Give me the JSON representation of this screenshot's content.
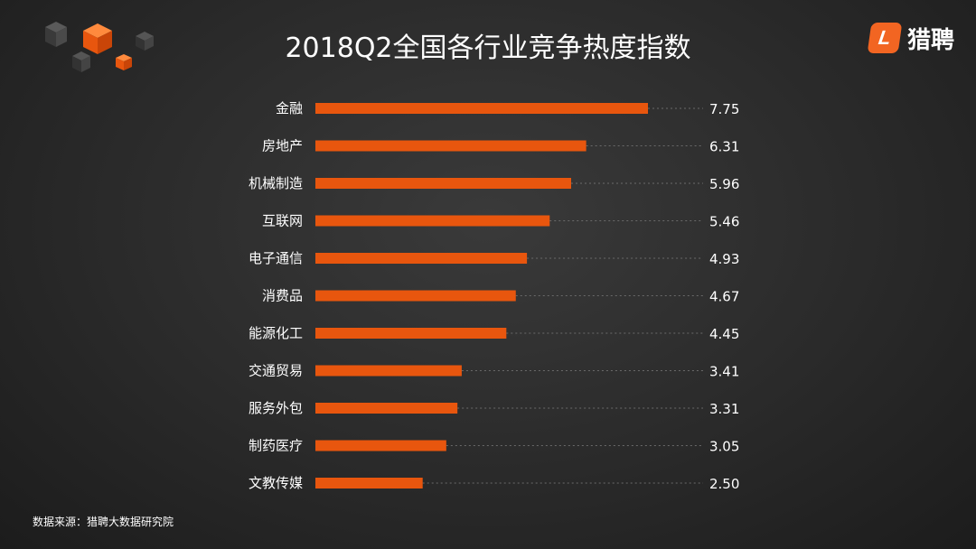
{
  "page": {
    "title": "2018Q2全国各行业竞争热度指数",
    "brand_letter": "L",
    "brand_name": "猎聘",
    "source": "数据来源：猎聘大数据研究院"
  },
  "colors": {
    "bar": "#e8560e",
    "accent": "#f26522",
    "dotted_line": "#6a6a6a"
  },
  "chart_data": {
    "type": "bar",
    "orientation": "horizontal",
    "title": "2018Q2全国各行业竞争热度指数",
    "categories": [
      "金融",
      "房地产",
      "机械制造",
      "互联网",
      "电子通信",
      "消费品",
      "能源化工",
      "交通贸易",
      "服务外包",
      "制药医疗",
      "文教传媒"
    ],
    "values": [
      7.75,
      6.31,
      5.96,
      5.46,
      4.93,
      4.67,
      4.45,
      3.41,
      3.31,
      3.05,
      2.5
    ],
    "value_labels": [
      "7.75",
      "6.31",
      "5.96",
      "5.46",
      "4.93",
      "4.67",
      "4.45",
      "3.41",
      "3.31",
      "3.05",
      "2.50"
    ],
    "xlim": [
      0,
      10
    ],
    "grid": false,
    "legend": "none"
  }
}
